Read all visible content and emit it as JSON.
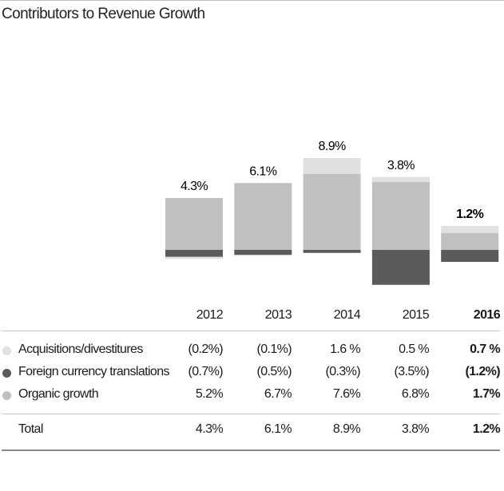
{
  "chart_data": {
    "type": "bar",
    "stacked": true,
    "title": "Contributors to Revenue Growth",
    "categories": [
      "2012",
      "2013",
      "2014",
      "2015",
      "2016"
    ],
    "highlight_category": "2016",
    "series": [
      {
        "name": "Acquisitions/divestitures",
        "values": [
          -0.2,
          -0.1,
          1.6,
          0.5,
          0.7
        ],
        "labels": [
          "(0.2%)",
          "(0.1%)",
          "1.6 %",
          "0.5 %",
          "0.7 %"
        ],
        "color": "#e0e0e0"
      },
      {
        "name": "Foreign currency translations",
        "values": [
          -0.7,
          -0.5,
          -0.3,
          -3.5,
          -1.2
        ],
        "labels": [
          "(0.7%)",
          "(0.5%)",
          "(0.3%)",
          "(3.5%)",
          "(1.2%)"
        ],
        "color": "#5a5a5a"
      },
      {
        "name": "Organic growth",
        "values": [
          5.2,
          6.7,
          7.6,
          6.8,
          1.7
        ],
        "labels": [
          "5.2%",
          "6.7%",
          "7.6%",
          "6.8%",
          "1.7%"
        ],
        "color": "#c0c0c0"
      }
    ],
    "totals": {
      "name": "Total",
      "values": [
        4.3,
        6.1,
        8.9,
        3.8,
        1.2
      ],
      "labels": [
        "4.3%",
        "6.1%",
        "8.9%",
        "3.8%",
        "1.2%"
      ]
    },
    "grid": false,
    "legend": "table-below"
  }
}
